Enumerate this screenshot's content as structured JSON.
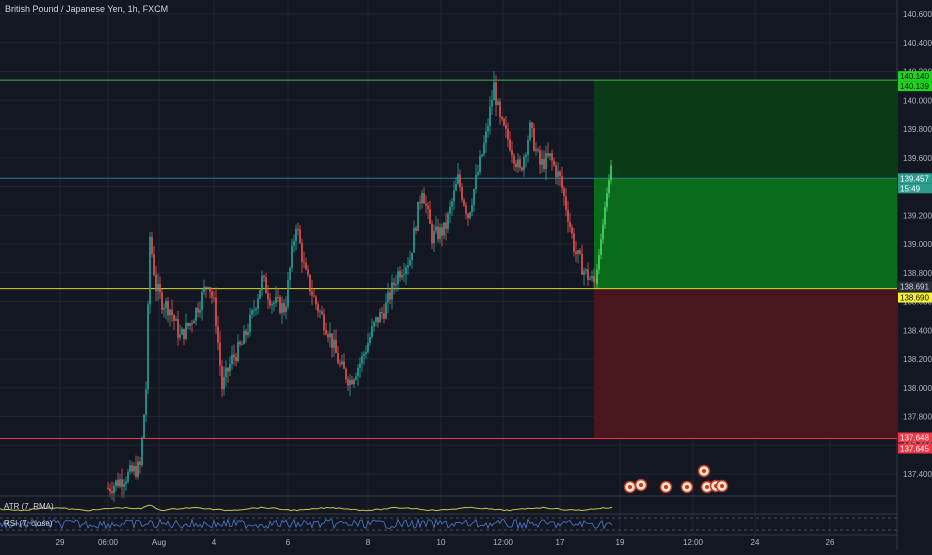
{
  "header": {
    "title": "British Pound / Japanese Yen, 1h, FXCM"
  },
  "price_scale": {
    "ticks": [
      "140.600",
      "140.400",
      "140.200",
      "140.000",
      "139.800",
      "139.600",
      "139.400",
      "139.200",
      "139.000",
      "138.800",
      "138.600",
      "138.400",
      "138.200",
      "138.000",
      "137.800",
      "137.600",
      "137.400"
    ]
  },
  "time_axis": {
    "ticks": [
      "29",
      "06:00",
      "Aug",
      "4",
      "6",
      "8",
      "10",
      "12",
      "12:00",
      "17",
      "19",
      "12:00",
      "24",
      "26"
    ]
  },
  "levels": {
    "target_a": "140.140",
    "target_b": "140.139",
    "current_price": "139.457",
    "countdown": "15:49",
    "entry_a": "138.691",
    "entry_b": "138.690",
    "stop_a": "137.648",
    "stop_b": "137.645"
  },
  "indicators": {
    "atr_label": "ATR (7, RMA)",
    "rsi_label": "RSI (7, close)"
  },
  "colors": {
    "background": "#131722",
    "up": "#26a69a",
    "down": "#ef5350",
    "target_line": "#4caf50",
    "entry_line": "#d8d827",
    "stop_line": "#f23645",
    "profit_zone": "#0b6b1c",
    "loss_zone": "#4a161d",
    "price_label": "#2a9d8f",
    "atr_line": "#c9c24f",
    "rsi_line": "#2962ff"
  }
}
